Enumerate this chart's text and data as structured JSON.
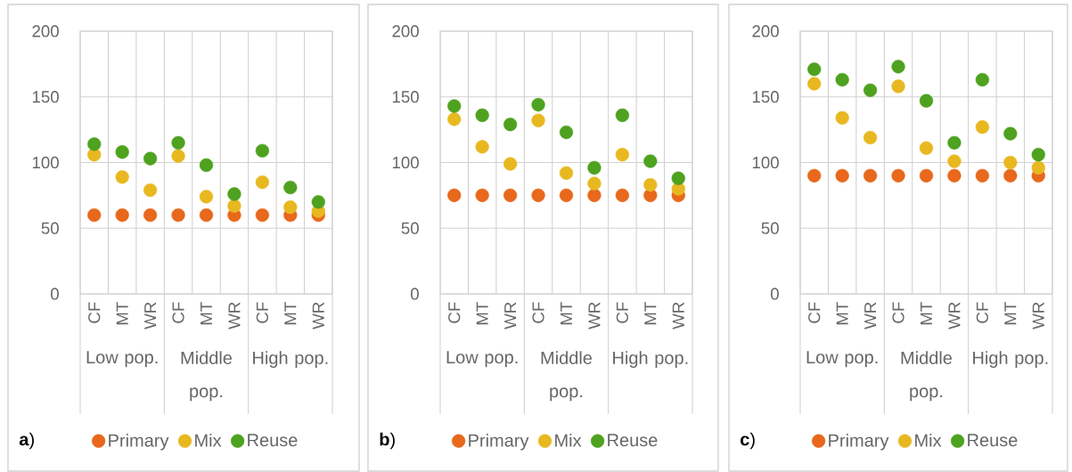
{
  "chart_data": [
    {
      "type": "scatter",
      "title": "**a**)",
      "categories": [
        "CF",
        "MT",
        "WR",
        "CF",
        "MT",
        "WR",
        "CF",
        "MT",
        "WR"
      ],
      "annotations": [
        "Low pop.",
        "Middle pop.",
        "High pop."
      ],
      "series": [
        {
          "name": "Primary",
          "color": "#e8681c",
          "values": [
            60,
            60,
            60,
            60,
            60,
            60,
            60,
            60,
            60
          ]
        },
        {
          "name": "Mix",
          "color": "#e8b820",
          "values": [
            106,
            89,
            79,
            105,
            74,
            67,
            85,
            66,
            63
          ]
        },
        {
          "name": "Reuse",
          "color": "#4ea21f",
          "values": [
            114,
            108,
            103,
            115,
            98,
            76,
            109,
            81,
            70
          ]
        }
      ],
      "ylim": [
        0,
        200
      ],
      "yticks": [
        0,
        50,
        100,
        150,
        200
      ],
      "grid": true,
      "legend": "bottom",
      "marker": "circle"
    },
    {
      "type": "scatter",
      "title": "**b**)",
      "categories": [
        "CF",
        "MT",
        "WR",
        "CF",
        "MT",
        "WR",
        "CF",
        "MT",
        "WR"
      ],
      "annotations": [
        "Low pop.",
        "Middle pop.",
        "High pop."
      ],
      "series": [
        {
          "name": "Primary",
          "color": "#e8681c",
          "values": [
            75,
            75,
            75,
            75,
            75,
            75,
            75,
            75,
            75
          ]
        },
        {
          "name": "Mix",
          "color": "#e8b820",
          "values": [
            133,
            112,
            99,
            132,
            92,
            84,
            106,
            83,
            80
          ]
        },
        {
          "name": "Reuse",
          "color": "#4ea21f",
          "values": [
            143,
            136,
            129,
            144,
            123,
            96,
            136,
            101,
            88
          ]
        }
      ],
      "ylim": [
        0,
        200
      ],
      "yticks": [
        0,
        50,
        100,
        150,
        200
      ],
      "grid": true,
      "legend": "bottom",
      "marker": "circle"
    },
    {
      "type": "scatter",
      "title": "**c**)",
      "categories": [
        "CF",
        "MT",
        "WR",
        "CF",
        "MT",
        "WR",
        "CF",
        "MT",
        "WR"
      ],
      "annotations": [
        "Low pop.",
        "Middle pop.",
        "High pop."
      ],
      "series": [
        {
          "name": "Primary",
          "color": "#e8681c",
          "values": [
            90,
            90,
            90,
            90,
            90,
            90,
            90,
            90,
            90
          ]
        },
        {
          "name": "Mix",
          "color": "#e8b820",
          "values": [
            160,
            134,
            119,
            158,
            111,
            101,
            127,
            100,
            96
          ]
        },
        {
          "name": "Reuse",
          "color": "#4ea21f",
          "values": [
            171,
            163,
            155,
            173,
            147,
            115,
            163,
            122,
            106
          ]
        }
      ],
      "ylim": [
        0,
        200
      ],
      "yticks": [
        0,
        50,
        100,
        150,
        200
      ],
      "grid": true,
      "legend": "bottom",
      "marker": "circle"
    }
  ]
}
